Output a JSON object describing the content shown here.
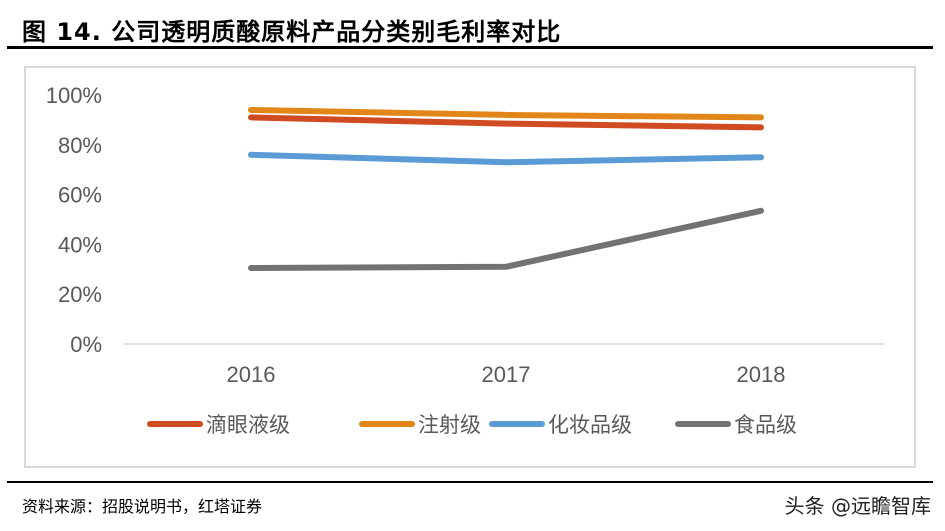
{
  "title": "图 14. 公司透明质酸原料产品分类别毛利率对比",
  "source": "资料来源：招股说明书，红塔证券",
  "watermark": "头条 @远瞻智库",
  "chart_data": {
    "type": "line",
    "categories": [
      "2016",
      "2017",
      "2018"
    ],
    "ylim": [
      0,
      100
    ],
    "yticks": [
      "0%",
      "20%",
      "40%",
      "60%",
      "80%",
      "100%"
    ],
    "grid": false,
    "legend_position": "bottom",
    "series": [
      {
        "name": "滴眼液级",
        "color": "#d04a22",
        "values": [
          91,
          88.5,
          87
        ]
      },
      {
        "name": "注射级",
        "color": "#e3861a",
        "values": [
          94,
          92,
          91
        ]
      },
      {
        "name": "化妆品级",
        "color": "#5b9bd5",
        "values": [
          76,
          73,
          75
        ]
      },
      {
        "name": "食品级",
        "color": "#737373",
        "values": [
          30.5,
          31,
          53.5
        ]
      }
    ]
  }
}
